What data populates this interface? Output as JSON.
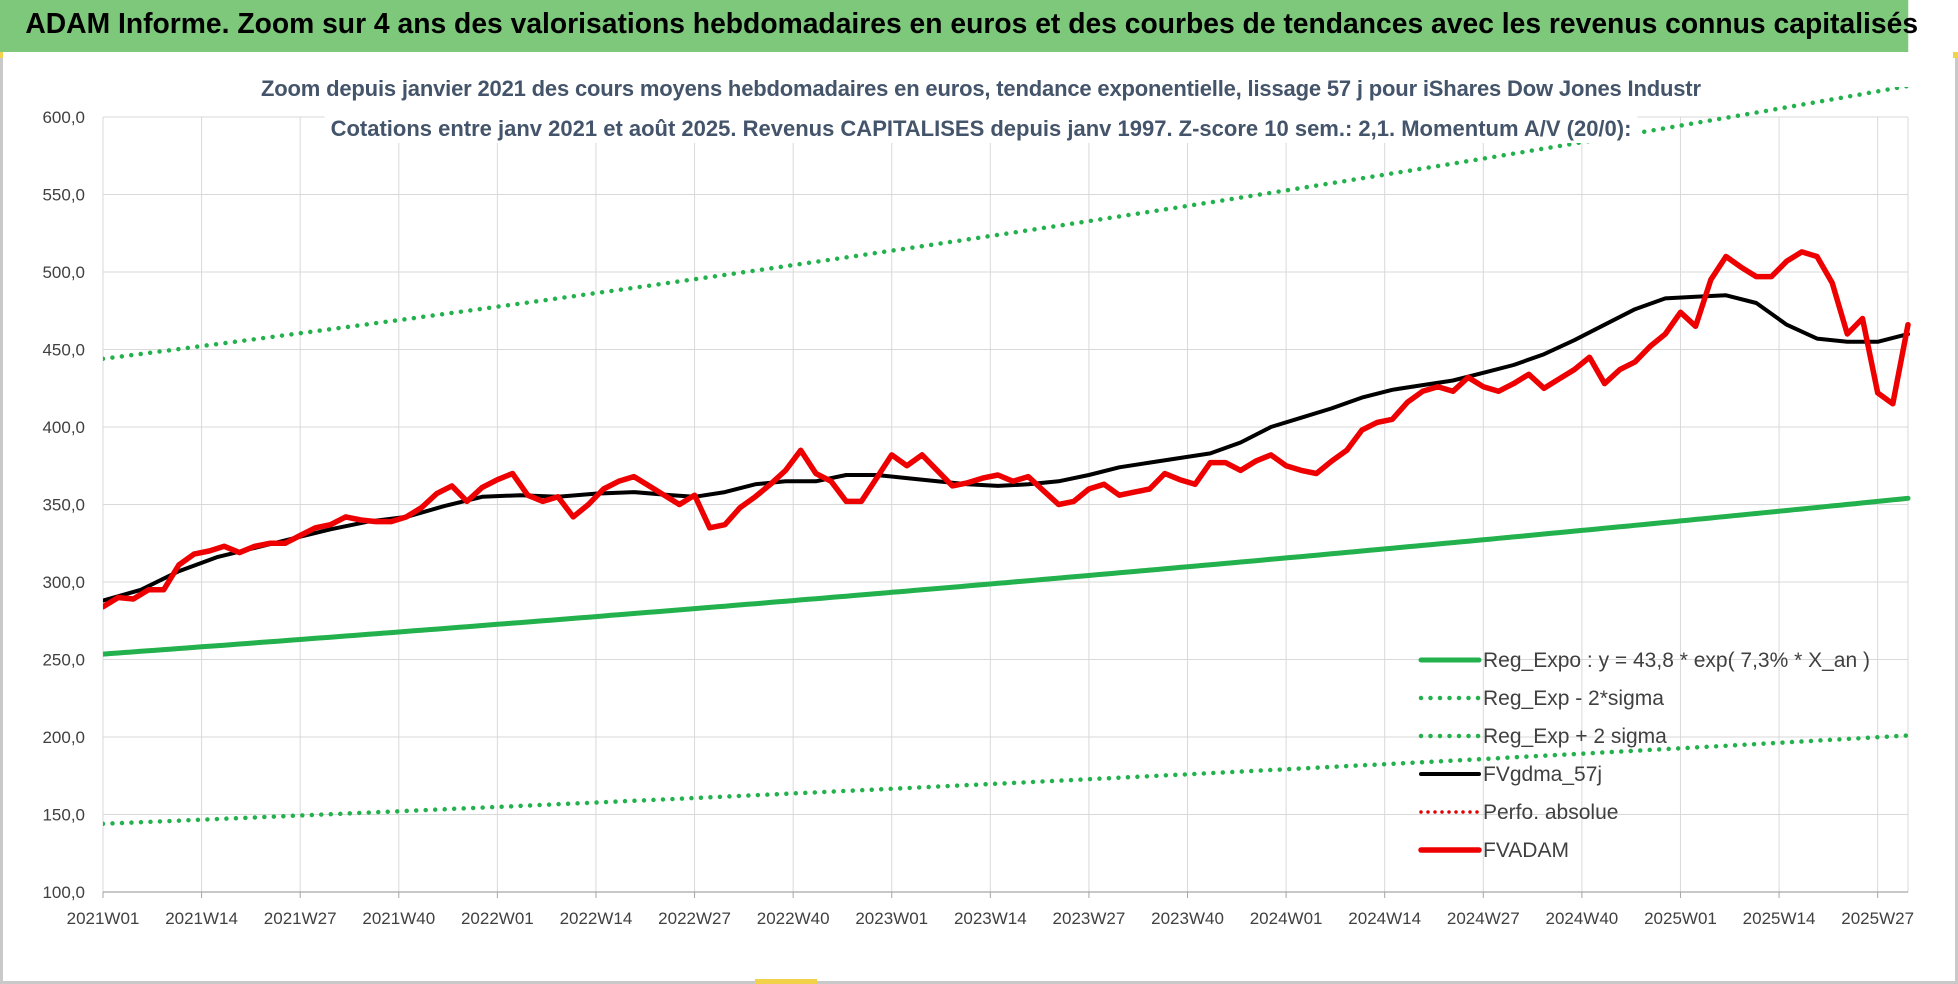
{
  "banner": {
    "text": "ADAM Informe. Zoom sur 4 ans des valorisations hebdomadaires en euros et des courbes de tendances avec les revenus connus capitalisés"
  },
  "colors": {
    "banner_bg": "#7ec87c",
    "reg_expo": "#22b14c",
    "reg_bands": "#22b14c",
    "fvgdma": "#000000",
    "perfo": "#e00000",
    "fvadam": "#ee0000",
    "grid": "#d9d9d9"
  },
  "chart_data": {
    "type": "line",
    "title": "Zoom depuis janvier 2021 des cours moyens hebdomadaires en euros, tendance exponentielle, lissage 57 j pour iShares Dow Jones Industr",
    "subtitle": "Cotations entre janv 2021 et août 2025. Revenus CAPITALISES depuis janv 1997. Z-score 10 sem.: 2,1. Momentum A/V (20/0):",
    "ylim": [
      100,
      600
    ],
    "ytick_values": [
      100,
      150,
      200,
      250,
      300,
      350,
      400,
      450,
      500,
      550,
      600
    ],
    "ytick_labels": [
      "100,0",
      "150,0",
      "200,0",
      "250,0",
      "300,0",
      "350,0",
      "400,0",
      "450,0",
      "500,0",
      "550,0",
      "600,0"
    ],
    "x_labels": [
      "2021W01",
      "2021W14",
      "2021W27",
      "2021W40",
      "2022W01",
      "2022W14",
      "2022W27",
      "2022W40",
      "2023W01",
      "2023W14",
      "2023W27",
      "2023W40",
      "2024W01",
      "2024W14",
      "2024W27",
      "2024W40",
      "2025W01",
      "2025W14",
      "2025W27"
    ],
    "x_label_weeks": [
      0,
      13,
      26,
      39,
      52,
      65,
      78,
      91,
      104,
      117,
      130,
      143,
      156,
      169,
      182,
      195,
      208,
      221,
      234
    ],
    "x_max_week": 238,
    "grid": true,
    "legend_position": "bottom-right",
    "legend": [
      {
        "name": "Reg_Expo : y = 43,8 * exp( 7,3% *  X_an )",
        "style": "solid-green-thick"
      },
      {
        "name": "Reg_Exp - 2*sigma",
        "style": "dotted-green"
      },
      {
        "name": "Reg_Exp + 2 sigma",
        "style": "dotted-green"
      },
      {
        "name": "FVgdma_57j",
        "style": "solid-black"
      },
      {
        "name": "Perfo. absolue",
        "style": "dotted-red"
      },
      {
        "name": "FVADAM",
        "style": "solid-red-thick"
      }
    ],
    "series": [
      {
        "name": "Reg_Expo : y = 43,8 * exp( 7,3% *  X_an )",
        "type": "exponential",
        "start": {
          "week": 0,
          "value": 253.5
        },
        "end": {
          "week": 238,
          "value": 354.0
        }
      },
      {
        "name": "Reg_Exp - 2*sigma",
        "type": "exponential",
        "start": {
          "week": 0,
          "value": 144.0
        },
        "end": {
          "week": 238,
          "value": 201.0
        }
      },
      {
        "name": "Reg_Exp + 2 sigma",
        "type": "exponential",
        "start": {
          "week": 0,
          "value": 444.0
        },
        "end": {
          "week": 238,
          "value": 620.0
        }
      },
      {
        "name": "FVgdma_57j",
        "points": [
          [
            0,
            288
          ],
          [
            5,
            295
          ],
          [
            10,
            307
          ],
          [
            15,
            316
          ],
          [
            20,
            322
          ],
          [
            25,
            328
          ],
          [
            30,
            334
          ],
          [
            35,
            339
          ],
          [
            40,
            342
          ],
          [
            45,
            349
          ],
          [
            50,
            355
          ],
          [
            55,
            356
          ],
          [
            60,
            355
          ],
          [
            65,
            357
          ],
          [
            70,
            358
          ],
          [
            75,
            356
          ],
          [
            78,
            355
          ],
          [
            82,
            358
          ],
          [
            86,
            363
          ],
          [
            90,
            365
          ],
          [
            94,
            365
          ],
          [
            98,
            369
          ],
          [
            102,
            369
          ],
          [
            106,
            367
          ],
          [
            110,
            365
          ],
          [
            114,
            363
          ],
          [
            118,
            362
          ],
          [
            122,
            363
          ],
          [
            126,
            365
          ],
          [
            130,
            369
          ],
          [
            134,
            374
          ],
          [
            138,
            377
          ],
          [
            142,
            380
          ],
          [
            146,
            383
          ],
          [
            150,
            390
          ],
          [
            154,
            400
          ],
          [
            158,
            406
          ],
          [
            162,
            412
          ],
          [
            166,
            419
          ],
          [
            170,
            424
          ],
          [
            174,
            427
          ],
          [
            178,
            430
          ],
          [
            182,
            435
          ],
          [
            186,
            440
          ],
          [
            190,
            447
          ],
          [
            194,
            456
          ],
          [
            198,
            466
          ],
          [
            202,
            476
          ],
          [
            206,
            483
          ],
          [
            210,
            484
          ],
          [
            214,
            485
          ],
          [
            218,
            480
          ],
          [
            222,
            466
          ],
          [
            226,
            457
          ],
          [
            230,
            455
          ],
          [
            234,
            455
          ],
          [
            238,
            460
          ]
        ]
      },
      {
        "name": "FVADAM",
        "points": [
          [
            0,
            284
          ],
          [
            2,
            290
          ],
          [
            4,
            289
          ],
          [
            6,
            295
          ],
          [
            8,
            295
          ],
          [
            10,
            311
          ],
          [
            12,
            318
          ],
          [
            14,
            320
          ],
          [
            16,
            323
          ],
          [
            18,
            319
          ],
          [
            20,
            323
          ],
          [
            22,
            325
          ],
          [
            24,
            325
          ],
          [
            26,
            330
          ],
          [
            28,
            335
          ],
          [
            30,
            337
          ],
          [
            32,
            342
          ],
          [
            34,
            340
          ],
          [
            36,
            339
          ],
          [
            38,
            339
          ],
          [
            40,
            342
          ],
          [
            42,
            348
          ],
          [
            44,
            357
          ],
          [
            46,
            362
          ],
          [
            48,
            352
          ],
          [
            50,
            361
          ],
          [
            52,
            366
          ],
          [
            54,
            370
          ],
          [
            56,
            356
          ],
          [
            58,
            352
          ],
          [
            60,
            355
          ],
          [
            62,
            342
          ],
          [
            64,
            350
          ],
          [
            66,
            360
          ],
          [
            68,
            365
          ],
          [
            70,
            368
          ],
          [
            72,
            362
          ],
          [
            74,
            356
          ],
          [
            76,
            350
          ],
          [
            78,
            356
          ],
          [
            80,
            335
          ],
          [
            82,
            337
          ],
          [
            84,
            348
          ],
          [
            86,
            355
          ],
          [
            88,
            363
          ],
          [
            90,
            372
          ],
          [
            92,
            385
          ],
          [
            94,
            370
          ],
          [
            96,
            365
          ],
          [
            98,
            352
          ],
          [
            100,
            352
          ],
          [
            102,
            367
          ],
          [
            104,
            382
          ],
          [
            106,
            375
          ],
          [
            108,
            382
          ],
          [
            110,
            372
          ],
          [
            112,
            362
          ],
          [
            114,
            364
          ],
          [
            116,
            367
          ],
          [
            118,
            369
          ],
          [
            120,
            365
          ],
          [
            122,
            368
          ],
          [
            124,
            359
          ],
          [
            126,
            350
          ],
          [
            128,
            352
          ],
          [
            130,
            360
          ],
          [
            132,
            363
          ],
          [
            134,
            356
          ],
          [
            136,
            358
          ],
          [
            138,
            360
          ],
          [
            140,
            370
          ],
          [
            142,
            366
          ],
          [
            144,
            363
          ],
          [
            146,
            377
          ],
          [
            148,
            377
          ],
          [
            150,
            372
          ],
          [
            152,
            378
          ],
          [
            154,
            382
          ],
          [
            156,
            375
          ],
          [
            158,
            372
          ],
          [
            160,
            370
          ],
          [
            162,
            378
          ],
          [
            164,
            385
          ],
          [
            166,
            398
          ],
          [
            168,
            403
          ],
          [
            170,
            405
          ],
          [
            172,
            416
          ],
          [
            174,
            423
          ],
          [
            176,
            426
          ],
          [
            178,
            423
          ],
          [
            180,
            432
          ],
          [
            182,
            426
          ],
          [
            184,
            423
          ],
          [
            186,
            428
          ],
          [
            188,
            434
          ],
          [
            190,
            425
          ],
          [
            192,
            431
          ],
          [
            194,
            437
          ],
          [
            196,
            445
          ],
          [
            198,
            428
          ],
          [
            200,
            437
          ],
          [
            202,
            442
          ],
          [
            204,
            452
          ],
          [
            206,
            460
          ],
          [
            208,
            474
          ],
          [
            210,
            465
          ],
          [
            212,
            495
          ],
          [
            214,
            510
          ],
          [
            216,
            503
          ],
          [
            218,
            497
          ],
          [
            220,
            497
          ],
          [
            222,
            507
          ],
          [
            224,
            513
          ],
          [
            226,
            510
          ],
          [
            228,
            493
          ],
          [
            230,
            460
          ],
          [
            232,
            470
          ],
          [
            234,
            422
          ],
          [
            236,
            415
          ],
          [
            238,
            466
          ]
        ]
      }
    ]
  }
}
